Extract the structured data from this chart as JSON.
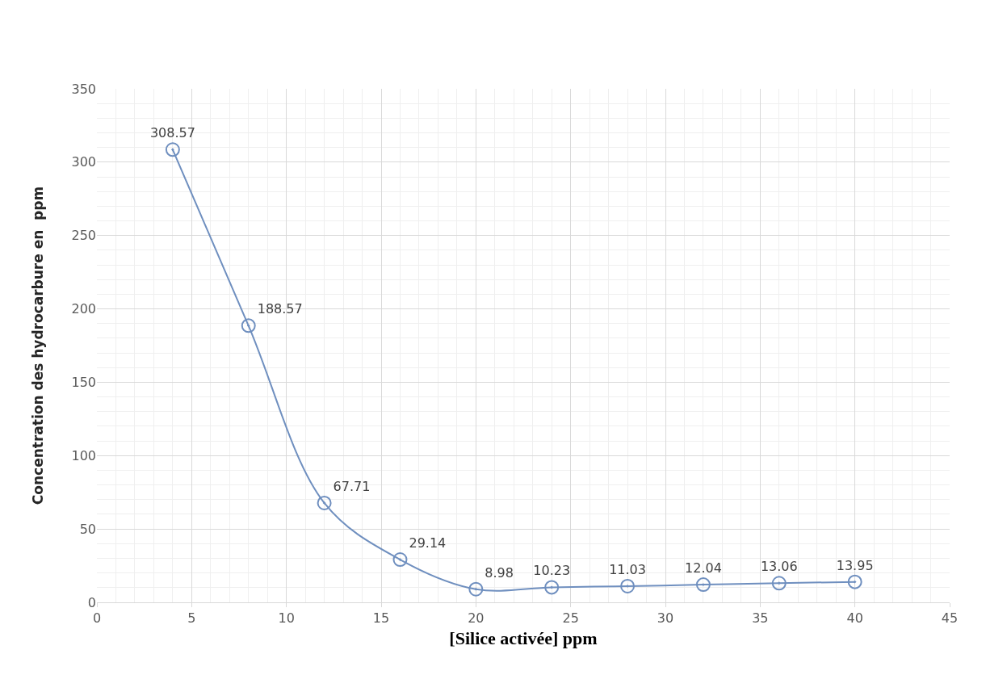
{
  "chart_data": {
    "type": "line",
    "xlabel": "[Silice activée] ppm",
    "ylabel": "Concentration des hydrocarbure en  ppm",
    "x": [
      4,
      8,
      12,
      16,
      20,
      24,
      28,
      32,
      36,
      40
    ],
    "series": [
      {
        "color": "#6f8fbf",
        "values": [
          308.57,
          188.57,
          67.71,
          29.14,
          8.98,
          10.23,
          11.03,
          12.04,
          13.06,
          13.95
        ]
      }
    ],
    "xlim": [
      0,
      45
    ],
    "xticks": [
      0,
      5,
      10,
      15,
      20,
      25,
      30,
      35,
      40,
      45
    ],
    "ylim": [
      0,
      350
    ],
    "yticks": [
      0,
      50,
      100,
      150,
      200,
      250,
      300,
      350
    ],
    "grid": true,
    "marker": "circle",
    "line_style": "solid",
    "data_labels": true
  }
}
